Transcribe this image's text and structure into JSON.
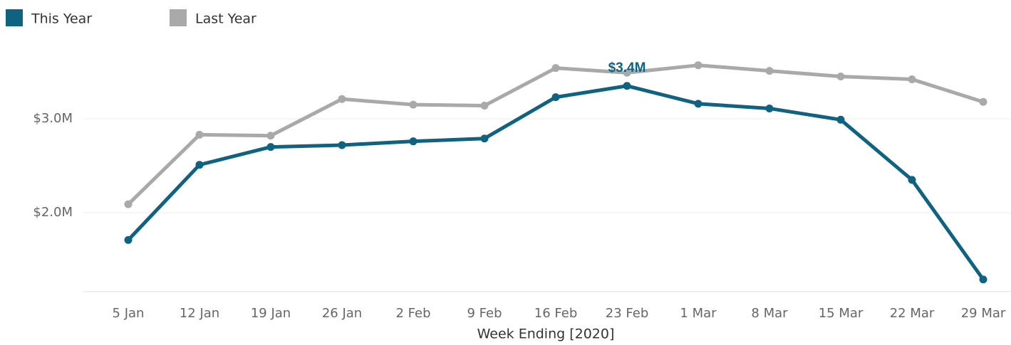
{
  "chart_data": {
    "type": "line",
    "x_label": "Week Ending [2020]",
    "categories": [
      "5 Jan",
      "12 Jan",
      "19 Jan",
      "26 Jan",
      "2 Feb",
      "9 Feb",
      "16 Feb",
      "23 Feb",
      "1 Mar",
      "8 Mar",
      "15 Mar",
      "22 Mar",
      "29 Mar"
    ],
    "series": [
      {
        "name": "This Year",
        "color": "#0f6280",
        "values": [
          1710000,
          2510000,
          2700000,
          2720000,
          2760000,
          2790000,
          3230000,
          3350000,
          3160000,
          3110000,
          2990000,
          2350000,
          1290000
        ],
        "value_labels": [
          null,
          null,
          null,
          null,
          null,
          null,
          null,
          "$3.4M",
          null,
          null,
          null,
          null,
          null
        ]
      },
      {
        "name": "Last Year",
        "color": "#a9a9a9",
        "values": [
          2090000,
          2830000,
          2820000,
          3210000,
          3150000,
          3140000,
          3540000,
          3490000,
          3570000,
          3510000,
          3450000,
          3420000,
          3180000
        ]
      }
    ],
    "ylim": [
      1160000,
      3810000
    ],
    "yticks": [
      {
        "value": 2000000,
        "label": "$2.0M"
      },
      {
        "value": 3000000,
        "label": "$3.0M"
      }
    ],
    "grid": true,
    "legend": "top-left"
  }
}
